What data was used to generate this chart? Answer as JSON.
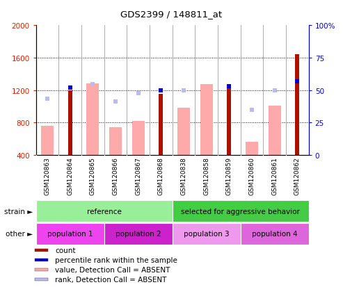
{
  "title": "GDS2399 / 148811_at",
  "samples": [
    "GSM120863",
    "GSM120864",
    "GSM120865",
    "GSM120866",
    "GSM120867",
    "GSM120868",
    "GSM120838",
    "GSM120858",
    "GSM120859",
    "GSM120860",
    "GSM120861",
    "GSM120862"
  ],
  "count_values": [
    null,
    1195,
    null,
    null,
    null,
    1155,
    null,
    null,
    1265,
    null,
    null,
    1640
  ],
  "percentile_raw": [
    null,
    52,
    null,
    null,
    null,
    50,
    null,
    null,
    53,
    null,
    null,
    57
  ],
  "absent_value_bars": [
    760,
    null,
    1280,
    740,
    820,
    null,
    980,
    1270,
    null,
    560,
    1010,
    null
  ],
  "absent_rank_markers": [
    1090,
    null,
    1270,
    1060,
    1165,
    null,
    1195,
    null,
    null,
    960,
    1200,
    null
  ],
  "ylim_left": [
    400,
    2000
  ],
  "ylim_right": [
    0,
    100
  ],
  "y_ticks_left": [
    400,
    800,
    1200,
    1600,
    2000
  ],
  "y_ticks_right": [
    0,
    25,
    50,
    75,
    100
  ],
  "grid_lines": [
    800,
    1200,
    1600
  ],
  "left_tick_color": "#cc2200",
  "right_tick_color": "#0000cc",
  "count_color": "#aa1100",
  "percentile_color": "#0000cc",
  "absent_value_color": "#ffaaaa",
  "absent_rank_color": "#bbbbee",
  "strain_groups": [
    {
      "label": "reference",
      "start": 0,
      "end": 5,
      "color": "#99ee99"
    },
    {
      "label": "selected for aggressive behavior",
      "start": 6,
      "end": 11,
      "color": "#44cc44"
    }
  ],
  "other_groups": [
    {
      "label": "population 1",
      "start": 0,
      "end": 2,
      "color": "#ee44ee"
    },
    {
      "label": "population 2",
      "start": 3,
      "end": 5,
      "color": "#cc22cc"
    },
    {
      "label": "population 3",
      "start": 6,
      "end": 8,
      "color": "#ee99ee"
    },
    {
      "label": "population 4",
      "start": 9,
      "end": 11,
      "color": "#dd66dd"
    }
  ],
  "legend_items": [
    {
      "label": "count",
      "color": "#aa1100"
    },
    {
      "label": "percentile rank within the sample",
      "color": "#0000cc"
    },
    {
      "label": "value, Detection Call = ABSENT",
      "color": "#ffaaaa"
    },
    {
      "label": "rank, Detection Call = ABSENT",
      "color": "#bbbbee"
    }
  ],
  "absent_value_bar_width": 0.55,
  "count_bar_width": 0.18
}
